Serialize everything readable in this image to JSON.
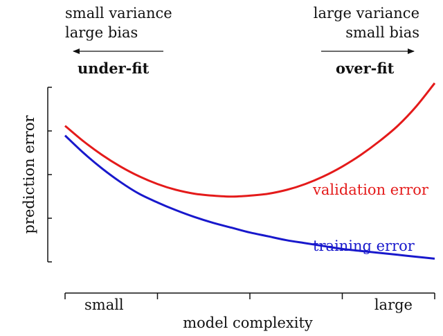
{
  "chart_data": {
    "type": "line",
    "xlabel": "model complexity",
    "ylabel": "prediction error",
    "x_tick_labels": [
      "small",
      "",
      "",
      "",
      "large"
    ],
    "y_tick_count": 5,
    "xlim": [
      0,
      1
    ],
    "ylim": [
      0,
      1
    ],
    "x": [
      0,
      0.05,
      0.1,
      0.15,
      0.2,
      0.25,
      0.3,
      0.35,
      0.4,
      0.45,
      0.5,
      0.55,
      0.6,
      0.65,
      0.7,
      0.75,
      0.8,
      0.85,
      0.9,
      0.95,
      1.0
    ],
    "series": [
      {
        "name": "validation error",
        "color": "#e41a1a",
        "values": [
          0.78,
          0.7,
          0.63,
          0.57,
          0.52,
          0.48,
          0.45,
          0.43,
          0.42,
          0.415,
          0.42,
          0.43,
          0.45,
          0.48,
          0.52,
          0.57,
          0.63,
          0.7,
          0.78,
          0.88,
          1.0
        ]
      },
      {
        "name": "training error",
        "color": "#1818cc",
        "values": [
          0.73,
          0.64,
          0.56,
          0.49,
          0.43,
          0.385,
          0.345,
          0.31,
          0.28,
          0.255,
          0.23,
          0.21,
          0.19,
          0.175,
          0.16,
          0.145,
          0.135,
          0.125,
          0.115,
          0.105,
          0.095
        ]
      }
    ],
    "annotations": {
      "left": {
        "line1": "small variance",
        "line2": "large bias",
        "label": "under-fit",
        "arrow": "left"
      },
      "right": {
        "line1": "large variance",
        "line2": "small bias",
        "label": "over-fit",
        "arrow": "right"
      }
    },
    "grid": false,
    "legend": "inline labels at right"
  }
}
